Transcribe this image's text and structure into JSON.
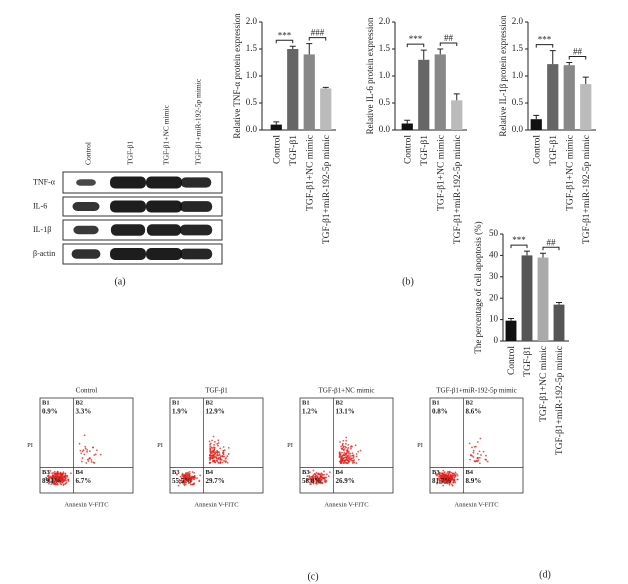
{
  "chart_data": [
    {
      "type": "bar",
      "y_label": "Relative TNF-α protein expression",
      "categories": [
        "Control",
        "TGF-β1",
        "TGF-β1+NC mimic",
        "TGF-β1+miR-192-5p mimic"
      ],
      "values": [
        0.1,
        1.5,
        1.4,
        0.77
      ],
      "errors": [
        0.05,
        0.05,
        0.2,
        0.02
      ],
      "colors": [
        "#111111",
        "#666666",
        "#888888",
        "#bbbbbb"
      ],
      "ylim": [
        0,
        2
      ],
      "yticks": [
        {
          "value": 0,
          "label": "0.0"
        },
        0.5,
        {
          "value": 1,
          "label": "1.0"
        },
        1.5,
        {
          "value": 2,
          "label": "2.0"
        }
      ],
      "significance": [
        "***",
        "###"
      ]
    },
    {
      "type": "bar",
      "y_label": "Relative IL-6 protein expression",
      "categories": [
        "Control",
        "TGF-β1",
        "TGF-β1+NC mimic",
        "TGF-β1+miR-192-5p mimic"
      ],
      "values": [
        0.12,
        1.3,
        1.4,
        0.55
      ],
      "errors": [
        0.06,
        0.18,
        0.1,
        0.12
      ],
      "colors": [
        "#111111",
        "#666666",
        "#888888",
        "#bbbbbb"
      ],
      "ylim": [
        0,
        2
      ],
      "yticks": [
        {
          "value": 0,
          "label": "0.0"
        },
        0.5,
        {
          "value": 1,
          "label": "1.0"
        },
        1.5,
        {
          "value": 2,
          "label": "2.0"
        }
      ],
      "significance": [
        "***",
        "##"
      ]
    },
    {
      "type": "bar",
      "y_label": "Relative IL-1β protein expression",
      "categories": [
        "Control",
        "TGF-β1",
        "TGF-β1+NC mimic",
        "TGF-β1+miR-192-5p mimic"
      ],
      "values": [
        0.2,
        1.22,
        1.2,
        0.85
      ],
      "errors": [
        0.07,
        0.25,
        0.05,
        0.13
      ],
      "colors": [
        "#111111",
        "#666666",
        "#888888",
        "#bbbbbb"
      ],
      "ylim": [
        0,
        2
      ],
      "yticks": [
        {
          "value": 0,
          "label": "0.0"
        },
        0.5,
        {
          "value": 1,
          "label": "1.0"
        },
        1.5,
        {
          "value": 2,
          "label": "2.0"
        }
      ],
      "significance": [
        "***",
        "##"
      ]
    },
    {
      "type": "bar",
      "y_label": "The percentage of cell apoptosis (%)",
      "categories": [
        "Control",
        "TGF-β1",
        "TGF-β1+NC mimic",
        "TGF-β1+miR-192-5p mimic"
      ],
      "values": [
        9.5,
        40,
        39,
        17
      ],
      "errors": [
        1,
        2,
        2,
        1
      ],
      "colors": [
        "#111111",
        "#555555",
        "#aaaaaa",
        "#555555"
      ],
      "ylim": [
        0,
        50
      ],
      "yticks": [
        0,
        10,
        20,
        30,
        40,
        50
      ],
      "significance": [
        "***",
        "##"
      ]
    }
  ],
  "blot": {
    "lanes": [
      "Control",
      "TGF-β1",
      "TGF-β1+NC mimic",
      "TGF-β1+miR-192-5p mimic"
    ],
    "rows": [
      "TNF-α",
      "IL-6",
      "IL-1β",
      "β-actin"
    ]
  },
  "flow_cytometry": {
    "x_axis_label": "Annexin V-FITC",
    "y_axis_label": "PI",
    "plots": [
      {
        "title": "Control",
        "quadrants": [
          [
            "B1",
            "0.9%"
          ],
          [
            "B2",
            "3.3%"
          ],
          [
            "B3",
            "89.1%"
          ],
          [
            "B4",
            "6.7%"
          ]
        ]
      },
      {
        "title": "TGF-β1",
        "quadrants": [
          [
            "B1",
            "1.9%"
          ],
          [
            "B2",
            "12.9%"
          ],
          [
            "B3",
            "55.5%"
          ],
          [
            "B4",
            "29.7%"
          ]
        ]
      },
      {
        "title": "TGF-β1+NC mimic",
        "quadrants": [
          [
            "B1",
            "1.2%"
          ],
          [
            "B2",
            "13.1%"
          ],
          [
            "B3",
            "58.8%"
          ],
          [
            "B4",
            "26.9%"
          ]
        ]
      },
      {
        "title": "TGF-β1+miR-192-5p mimic",
        "quadrants": [
          [
            "B1",
            "0.8%"
          ],
          [
            "B2",
            "8.6%"
          ],
          [
            "B3",
            "81.7%"
          ],
          [
            "B4",
            "8.9%"
          ]
        ]
      }
    ]
  },
  "panel_labels": [
    "(a)",
    "(b)",
    "(c)",
    "(d)"
  ]
}
